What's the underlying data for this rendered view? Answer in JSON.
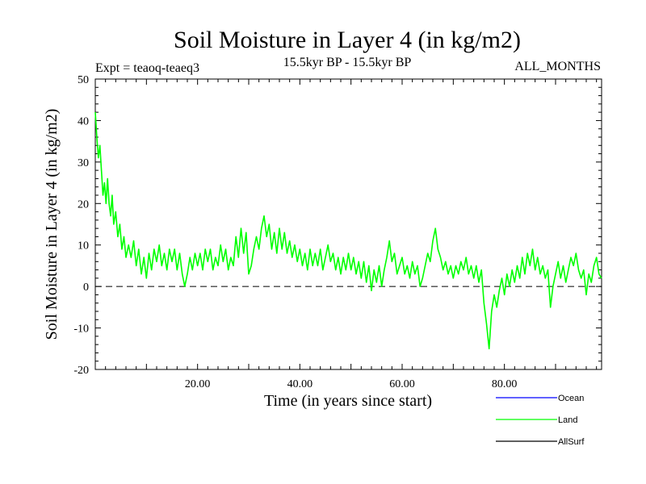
{
  "chart_data": {
    "type": "line",
    "title": "Soil Moisture in Layer 4 (in kg/m2)",
    "subtitle": "15.5kyr BP - 15.5kyr BP",
    "experiment_label": "Expt = teaoq-teaeq3",
    "period_label": "ALL_MONTHS",
    "xlabel": "Time (in years since start)",
    "ylabel": "Soil Moisture in Layer 4 (in kg/m2)",
    "xlim": [
      0,
      99
    ],
    "ylim": [
      -20,
      50
    ],
    "x_ticks": [
      20,
      40,
      60,
      80
    ],
    "x_tick_labels": [
      "20.00",
      "40.00",
      "60.00",
      "80.00"
    ],
    "y_ticks": [
      -20,
      -10,
      0,
      10,
      20,
      30,
      40,
      50
    ],
    "y_tick_labels": [
      "-20",
      "-10",
      "0",
      "10",
      "20",
      "30",
      "40",
      "50"
    ],
    "reference_line": 0,
    "series": [
      {
        "name": "Ocean",
        "color": "#0000ff",
        "visible": false,
        "points": []
      },
      {
        "name": "Land",
        "color": "#00ff00",
        "visible": true,
        "points": [
          [
            0.0,
            42
          ],
          [
            0.3,
            36
          ],
          [
            0.6,
            31
          ],
          [
            0.9,
            34
          ],
          [
            1.2,
            28
          ],
          [
            1.5,
            22
          ],
          [
            1.8,
            25
          ],
          [
            2.1,
            20
          ],
          [
            2.4,
            26
          ],
          [
            2.7,
            20
          ],
          [
            3.0,
            17
          ],
          [
            3.3,
            22
          ],
          [
            3.6,
            15
          ],
          [
            4.0,
            18
          ],
          [
            4.4,
            12
          ],
          [
            4.8,
            15
          ],
          [
            5.2,
            9
          ],
          [
            5.6,
            12
          ],
          [
            6.0,
            7
          ],
          [
            6.5,
            10
          ],
          [
            7.0,
            7
          ],
          [
            7.5,
            11
          ],
          [
            8.0,
            5
          ],
          [
            8.5,
            9
          ],
          [
            9.0,
            3
          ],
          [
            9.5,
            7
          ],
          [
            10.0,
            2
          ],
          [
            10.5,
            8
          ],
          [
            11.0,
            4
          ],
          [
            11.5,
            9
          ],
          [
            12.0,
            6
          ],
          [
            12.5,
            10
          ],
          [
            13.0,
            5
          ],
          [
            13.5,
            8
          ],
          [
            14.0,
            4
          ],
          [
            14.5,
            9
          ],
          [
            15.0,
            6
          ],
          [
            15.5,
            9
          ],
          [
            16.0,
            4
          ],
          [
            16.5,
            8
          ],
          [
            17.0,
            3
          ],
          [
            17.5,
            0
          ],
          [
            18.0,
            3
          ],
          [
            18.5,
            7
          ],
          [
            19.0,
            4
          ],
          [
            19.5,
            8
          ],
          [
            20.0,
            5
          ],
          [
            20.5,
            8
          ],
          [
            21.0,
            4
          ],
          [
            21.5,
            9
          ],
          [
            22.0,
            6
          ],
          [
            22.5,
            9
          ],
          [
            23.0,
            4
          ],
          [
            23.5,
            7
          ],
          [
            24.0,
            5
          ],
          [
            24.5,
            10
          ],
          [
            25.0,
            6
          ],
          [
            25.5,
            9
          ],
          [
            26.0,
            4
          ],
          [
            26.5,
            7
          ],
          [
            27.0,
            5
          ],
          [
            27.5,
            12
          ],
          [
            28.0,
            7
          ],
          [
            28.5,
            14
          ],
          [
            29.0,
            8
          ],
          [
            29.5,
            13
          ],
          [
            30.0,
            3
          ],
          [
            30.5,
            5
          ],
          [
            31.0,
            9
          ],
          [
            31.5,
            12
          ],
          [
            32.0,
            9
          ],
          [
            32.5,
            14
          ],
          [
            33.0,
            17
          ],
          [
            33.5,
            12
          ],
          [
            34.0,
            15
          ],
          [
            34.5,
            9
          ],
          [
            35.0,
            13
          ],
          [
            35.5,
            8
          ],
          [
            36.0,
            14
          ],
          [
            36.5,
            9
          ],
          [
            37.0,
            13
          ],
          [
            37.5,
            8
          ],
          [
            38.0,
            11
          ],
          [
            38.5,
            7
          ],
          [
            39.0,
            10
          ],
          [
            39.5,
            6
          ],
          [
            40.0,
            9
          ],
          [
            40.5,
            5
          ],
          [
            41.0,
            8
          ],
          [
            41.5,
            4
          ],
          [
            42.0,
            9
          ],
          [
            42.5,
            5
          ],
          [
            43.0,
            8
          ],
          [
            43.5,
            5
          ],
          [
            44.0,
            9
          ],
          [
            44.5,
            4
          ],
          [
            45.0,
            7
          ],
          [
            45.5,
            10
          ],
          [
            46.0,
            6
          ],
          [
            46.5,
            8
          ],
          [
            47.0,
            4
          ],
          [
            47.5,
            7
          ],
          [
            48.0,
            3
          ],
          [
            48.5,
            7
          ],
          [
            49.0,
            4
          ],
          [
            49.5,
            8
          ],
          [
            50.0,
            4
          ],
          [
            50.5,
            7
          ],
          [
            51.0,
            3
          ],
          [
            51.5,
            6
          ],
          [
            52.0,
            2
          ],
          [
            52.5,
            6
          ],
          [
            53.0,
            1
          ],
          [
            53.5,
            5
          ],
          [
            54.0,
            -1
          ],
          [
            54.5,
            4
          ],
          [
            55.0,
            1
          ],
          [
            55.5,
            5
          ],
          [
            56.0,
            0
          ],
          [
            56.5,
            4
          ],
          [
            57.0,
            7
          ],
          [
            57.5,
            11
          ],
          [
            58.0,
            6
          ],
          [
            58.5,
            8
          ],
          [
            59.0,
            3
          ],
          [
            59.5,
            5
          ],
          [
            60.0,
            7
          ],
          [
            60.5,
            3
          ],
          [
            61.0,
            5
          ],
          [
            61.5,
            2
          ],
          [
            62.0,
            6
          ],
          [
            62.5,
            3
          ],
          [
            63.0,
            5
          ],
          [
            63.5,
            0
          ],
          [
            64.0,
            2
          ],
          [
            64.5,
            5
          ],
          [
            65.0,
            8
          ],
          [
            65.5,
            6
          ],
          [
            66.0,
            11
          ],
          [
            66.5,
            14
          ],
          [
            67.0,
            9
          ],
          [
            67.5,
            7
          ],
          [
            68.0,
            4
          ],
          [
            68.5,
            6
          ],
          [
            69.0,
            3
          ],
          [
            69.5,
            5
          ],
          [
            70.0,
            2
          ],
          [
            70.5,
            5
          ],
          [
            71.0,
            3
          ],
          [
            71.5,
            6
          ],
          [
            72.0,
            4
          ],
          [
            72.5,
            7
          ],
          [
            73.0,
            3
          ],
          [
            73.5,
            5
          ],
          [
            74.0,
            2
          ],
          [
            74.5,
            5
          ],
          [
            75.0,
            1
          ],
          [
            75.5,
            4
          ],
          [
            76.0,
            -4
          ],
          [
            76.5,
            -9
          ],
          [
            77.0,
            -15
          ],
          [
            77.5,
            -6
          ],
          [
            78.0,
            -2
          ],
          [
            78.5,
            -5
          ],
          [
            79.0,
            -1
          ],
          [
            79.5,
            2
          ],
          [
            80.0,
            -2
          ],
          [
            80.5,
            3
          ],
          [
            81.0,
            0
          ],
          [
            81.5,
            4
          ],
          [
            82.0,
            1
          ],
          [
            82.5,
            5
          ],
          [
            83.0,
            2
          ],
          [
            83.5,
            7
          ],
          [
            84.0,
            3
          ],
          [
            84.5,
            8
          ],
          [
            85.0,
            5
          ],
          [
            85.5,
            9
          ],
          [
            86.0,
            4
          ],
          [
            86.5,
            7
          ],
          [
            87.0,
            3
          ],
          [
            87.5,
            5
          ],
          [
            88.0,
            2
          ],
          [
            88.5,
            4
          ],
          [
            89.0,
            -5
          ],
          [
            89.5,
            0
          ],
          [
            90.0,
            3
          ],
          [
            90.5,
            6
          ],
          [
            91.0,
            2
          ],
          [
            91.5,
            5
          ],
          [
            92.0,
            1
          ],
          [
            92.5,
            4
          ],
          [
            93.0,
            7
          ],
          [
            93.5,
            5
          ],
          [
            94.0,
            8
          ],
          [
            94.5,
            4
          ],
          [
            95.0,
            2
          ],
          [
            95.5,
            4
          ],
          [
            96.0,
            -2
          ],
          [
            96.5,
            3
          ],
          [
            97.0,
            1
          ],
          [
            97.5,
            5
          ],
          [
            98.0,
            7
          ],
          [
            98.5,
            3
          ],
          [
            99.0,
            2
          ]
        ]
      },
      {
        "name": "AllSurf",
        "color": "#000000",
        "visible": false,
        "points": []
      }
    ],
    "legend_position": "bottom-right"
  }
}
